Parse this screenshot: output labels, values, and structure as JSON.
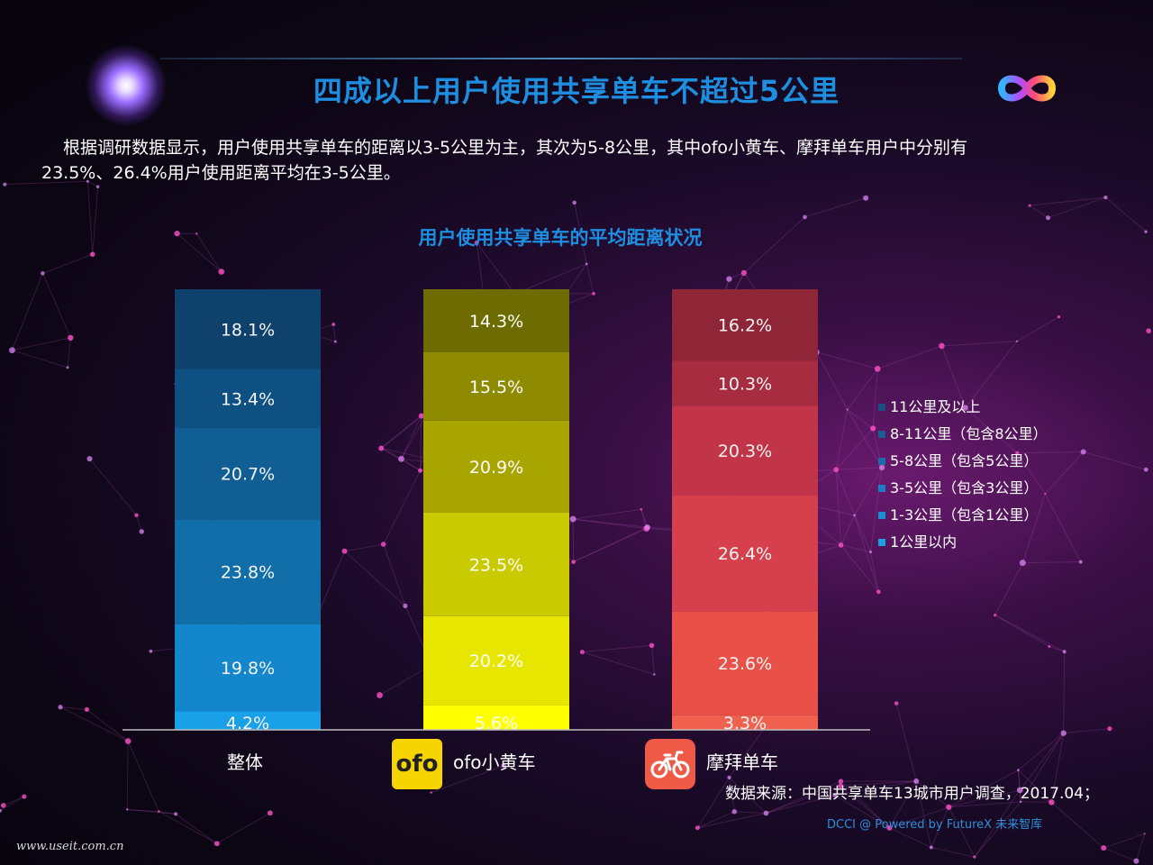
{
  "header": {
    "title": "四成以上用户使用共享单车不超过5公里"
  },
  "intro": {
    "line1": "根据调研数据显示，用户使用共享单车的距离以3-5公里为主，其次为5-8公里，其中ofo小黄车、摩拜单车用户中分别有",
    "line2": "23.5%、26.4%用户使用距离平均在3-5公里。"
  },
  "colors": {
    "overall": [
      "#1aa0e6",
      "#1386cc",
      "#126ea8",
      "#105e94",
      "#0f5082",
      "#0e416c"
    ],
    "ofo": [
      "#ffff00",
      "#e6e600",
      "#caca00",
      "#a9a500",
      "#8e8b00",
      "#6e6c00"
    ],
    "mobike": [
      "#f0604f",
      "#e85048",
      "#d63f4c",
      "#c23448",
      "#a82c40",
      "#8e2638"
    ],
    "legend": [
      "#1a4f82",
      "#1a5c94",
      "#1a6cac",
      "#1a7ec4",
      "#1a8fd6",
      "#1aa0e6"
    ]
  },
  "chart_data": {
    "type": "bar",
    "stacked": true,
    "percent_stacked": true,
    "title": "用户使用共享单车的平均距离状况",
    "categories": [
      "整体",
      "ofo小黄车",
      "摩拜单车"
    ],
    "series": [
      {
        "name": "1公里以内",
        "values": [
          4.2,
          5.6,
          3.3
        ]
      },
      {
        "name": "1-3公里（包含1公里）",
        "values": [
          19.8,
          20.2,
          23.6
        ]
      },
      {
        "name": "3-5公里（包含3公里）",
        "values": [
          23.8,
          23.5,
          26.4
        ]
      },
      {
        "name": "5-8公里（包含5公里）",
        "values": [
          20.7,
          20.9,
          20.3
        ]
      },
      {
        "name": "8-11公里（包含8公里）",
        "values": [
          13.4,
          15.5,
          10.3
        ]
      },
      {
        "name": "11公里及以上",
        "values": [
          18.1,
          14.3,
          16.2
        ]
      }
    ],
    "value_labels": [
      [
        "4.2%",
        "5.6%",
        "3.3%"
      ],
      [
        "19.8%",
        "20.2%",
        "23.6%"
      ],
      [
        "23.8%",
        "23.5%",
        "26.4%"
      ],
      [
        "20.7%",
        "20.9%",
        "20.3%"
      ],
      [
        "13.4%",
        "15.5%",
        "10.3%"
      ],
      [
        "18.1%",
        "14.3%",
        "16.2%"
      ]
    ],
    "legend_position": "right"
  },
  "legend_items": [
    "11公里及以上",
    "8-11公里（包含8公里）",
    "5-8公里（包含5公里）",
    "3-5公里（包含3公里）",
    "1-3公里（包含1公里）",
    "1公里以内"
  ],
  "badges": {
    "ofo": "ofo"
  },
  "footer": {
    "source": "数据来源：中国共享单车13城市用户调查，2017.04；",
    "powered": "DCCI @ Powered by FutureX 未来智库",
    "watermark": "www.useit.com.cn"
  }
}
